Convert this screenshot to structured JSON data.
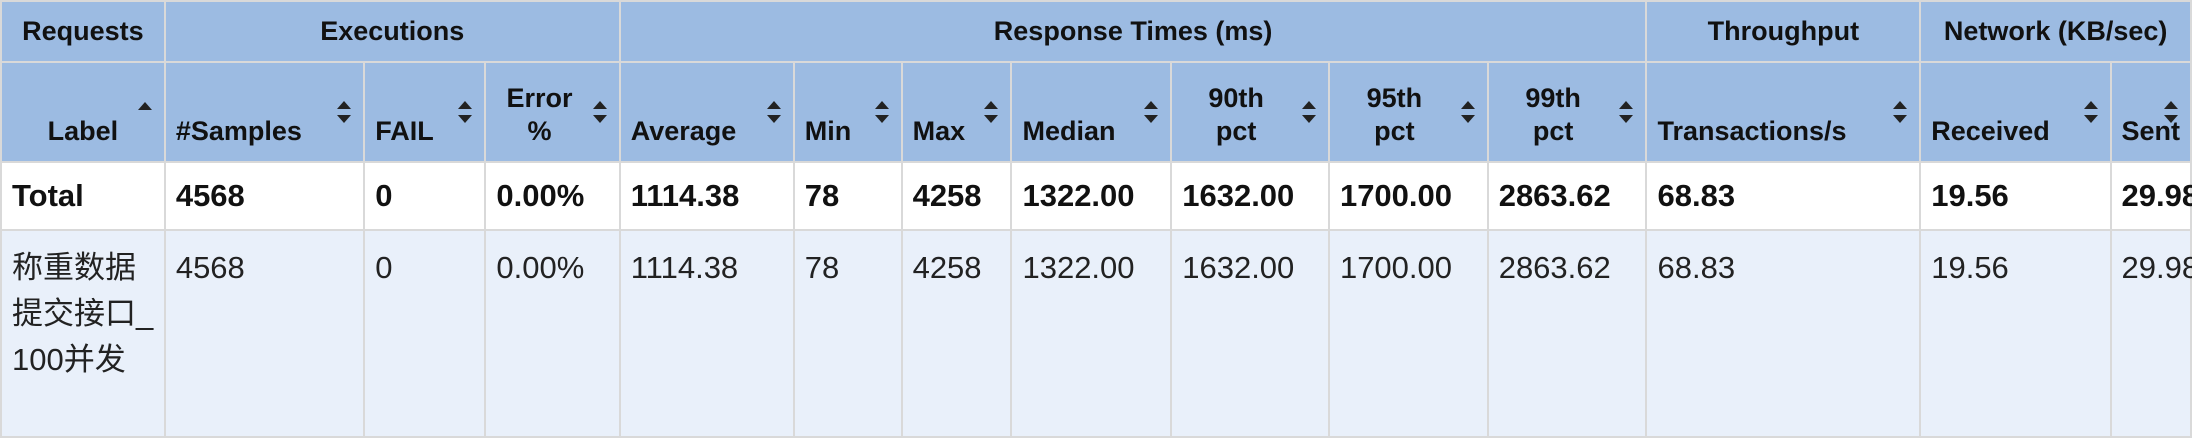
{
  "groups": {
    "requests": "Requests",
    "executions": "Executions",
    "response_times": "Response Times (ms)",
    "throughput": "Throughput",
    "network": "Network (KB/sec)"
  },
  "columns": {
    "label": "Label",
    "samples": "#Samples",
    "fail": "FAIL",
    "error_pct": "Error %",
    "average": "Average",
    "min": "Min",
    "max": "Max",
    "median": "Median",
    "p90": "90th pct",
    "p95": "95th pct",
    "p99": "99th pct",
    "transactions": "Transactions/s",
    "received": "Received",
    "sent": "Sent"
  },
  "sort": {
    "column": "Label",
    "direction": "ascending"
  },
  "total": {
    "label": "Total",
    "samples": "4568",
    "fail": "0",
    "error_pct": "0.00%",
    "average": "1114.38",
    "min": "78",
    "max": "4258",
    "median": "1322.00",
    "p90": "1632.00",
    "p95": "1700.00",
    "p99": "2863.62",
    "transactions": "68.83",
    "received": "19.56",
    "sent": "29.98"
  },
  "rows": [
    {
      "label": "称重数据提交接口_100并发",
      "samples": "4568",
      "fail": "0",
      "error_pct": "0.00%",
      "average": "1114.38",
      "min": "78",
      "max": "4258",
      "median": "1322.00",
      "p90": "1632.00",
      "p95": "1700.00",
      "p99": "2863.62",
      "transactions": "68.83",
      "received": "19.56",
      "sent": "29.98"
    }
  ]
}
